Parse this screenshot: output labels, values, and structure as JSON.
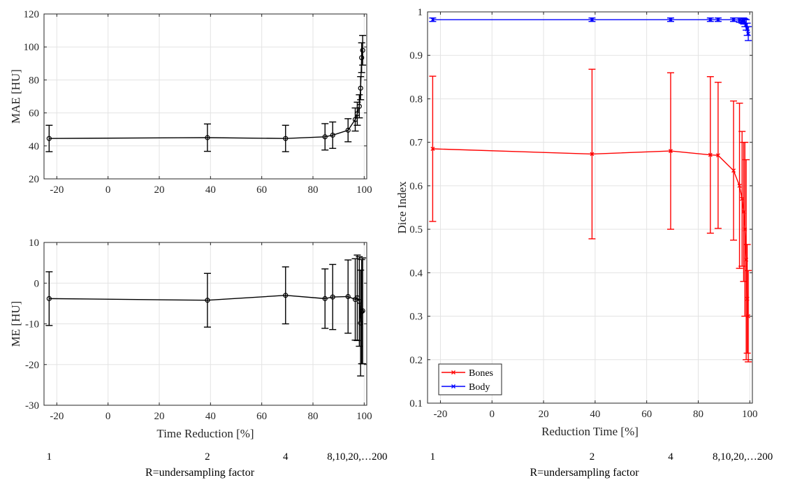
{
  "chart_data": [
    {
      "id": "mae",
      "type": "line",
      "title": "",
      "xlabel": "",
      "ylabel": "MAE [HU]",
      "xlim": [
        -25,
        101
      ],
      "ylim": [
        20,
        120
      ],
      "xticks": [
        -20,
        0,
        20,
        40,
        60,
        80,
        100
      ],
      "yticks": [
        20,
        40,
        60,
        80,
        100,
        120
      ],
      "grid": true,
      "marker": "circle",
      "series": [
        {
          "color": "#000000",
          "x": [
            -23,
            38.8,
            69.3,
            84.7,
            87.7,
            93.7,
            96.5,
            97.3,
            98.1,
            98.6,
            99.0,
            99.4
          ],
          "y": [
            44.5,
            45,
            44.5,
            45.5,
            46.5,
            49.5,
            56,
            59.5,
            64,
            75,
            93.5,
            98
          ],
          "err": [
            8,
            8.3,
            8,
            8,
            8,
            7,
            7,
            7,
            7,
            7,
            9,
            9
          ]
        }
      ]
    },
    {
      "id": "me",
      "type": "line",
      "title": "",
      "xlabel": "Time Reduction [%]",
      "ylabel": "ME [HU]",
      "xlim": [
        -25,
        101
      ],
      "ylim": [
        -30,
        10
      ],
      "xticks": [
        -20,
        0,
        20,
        40,
        60,
        80,
        100
      ],
      "yticks": [
        -30,
        -20,
        -10,
        0,
        10
      ],
      "grid": true,
      "marker": "circle",
      "series": [
        {
          "color": "#000000",
          "x": [
            -23,
            38.8,
            69.3,
            84.7,
            87.7,
            93.7,
            96.5,
            97.3,
            98.1,
            98.6,
            99.0,
            99.4
          ],
          "y": [
            -3.8,
            -4.2,
            -3,
            -3.8,
            -3.4,
            -3.3,
            -4,
            -3.6,
            -4.5,
            -9.8,
            -7,
            -6.8
          ],
          "err": [
            6.6,
            6.6,
            7,
            7.3,
            8,
            9,
            10,
            10.5,
            11,
            13,
            12.8,
            13
          ]
        }
      ],
      "secondary_axis": {
        "labels": [
          "1",
          "2",
          "4",
          "8,10,20,…200"
        ],
        "label_x": [
          -23,
          38.8,
          69.3,
          93.7
        ],
        "title": "R=undersampling factor"
      }
    },
    {
      "id": "dice",
      "type": "line",
      "title": "",
      "xlabel": "Reduction Time [%]",
      "ylabel": "Dice Index",
      "xlim": [
        -25,
        101
      ],
      "ylim": [
        0.1,
        1
      ],
      "xticks": [
        -20,
        0,
        20,
        40,
        60,
        80,
        100
      ],
      "yticks": [
        0.1,
        0.2,
        0.3,
        0.4,
        0.5,
        0.6,
        0.7,
        0.8,
        0.9,
        1
      ],
      "ytick_labels": [
        "0.1",
        "0.2",
        "0.3",
        "0.4",
        "0.5",
        "0.6",
        "0.7",
        "0.8",
        "0.9",
        "1"
      ],
      "grid": true,
      "legend": {
        "position": "bottom-left"
      },
      "marker": "x",
      "series": [
        {
          "name": "Bones",
          "color": "#ff0000",
          "x": [
            -23,
            38.8,
            69.3,
            84.7,
            87.7,
            93.7,
            96.0,
            97.0,
            97.6,
            98.1,
            98.6,
            99.0,
            99.4
          ],
          "y": [
            0.685,
            0.673,
            0.68,
            0.671,
            0.67,
            0.635,
            0.6,
            0.57,
            0.54,
            0.5,
            0.43,
            0.34,
            0.3
          ],
          "err": [
            0.167,
            0.195,
            0.18,
            0.18,
            0.168,
            0.16,
            0.19,
            0.155,
            0.16,
            0.2,
            0.23,
            0.125,
            0.105
          ]
        },
        {
          "name": "Body",
          "color": "#0000ff",
          "x": [
            -23,
            38.8,
            69.3,
            84.7,
            87.7,
            93.7,
            96.0,
            97.0,
            97.6,
            98.1,
            98.6,
            99.0,
            99.4
          ],
          "y": [
            0.982,
            0.982,
            0.982,
            0.982,
            0.982,
            0.982,
            0.981,
            0.98,
            0.979,
            0.975,
            0.97,
            0.96,
            0.95
          ],
          "err": [
            0.004,
            0.004,
            0.004,
            0.004,
            0.004,
            0.004,
            0.005,
            0.006,
            0.007,
            0.009,
            0.012,
            0.014,
            0.016
          ]
        }
      ],
      "secondary_axis": {
        "labels": [
          "1",
          "2",
          "4",
          "8,10,20,…200"
        ],
        "label_x": [
          -23,
          38.8,
          69.3,
          93.7
        ],
        "title": "R=undersampling factor"
      }
    }
  ]
}
